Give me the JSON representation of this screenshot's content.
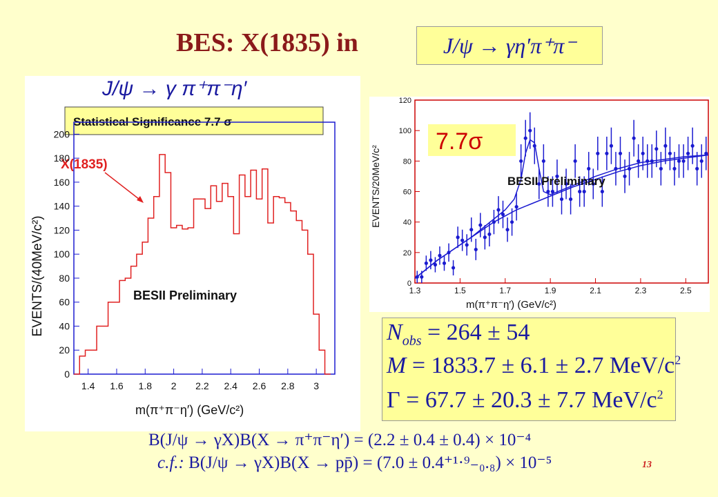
{
  "slide": {
    "title": "BES: X(1835) in",
    "title_equation": "J/ψ → γη′π⁺π⁻",
    "page_number": "13"
  },
  "left_plot": {
    "process_label": "J/ψ → γ π⁺π⁻η′",
    "significance_label": "Statistical Significance 7.7 σ",
    "peak_label": "X(1835)",
    "preliminary_label": "BESII Preliminary",
    "ylabel": "EVENTS/(40MeV/c²)",
    "xlabel": "m(π⁺π⁻η′)   (GeV/c²)"
  },
  "right_plot": {
    "significance_label": "7.7σ",
    "preliminary_label": "BESII Preliminary",
    "ylabel": "EVENTS/20MeV/c²",
    "xlabel": "m(π⁺π⁻η′) (GeV/c²)"
  },
  "results": {
    "n_obs": {
      "symbol": "N",
      "sub": "obs",
      "value": "= 264 ± 54"
    },
    "mass": {
      "symbol": "M",
      "value": "= 1833.7 ± 6.1 ± 2.7 MeV/c",
      "sup": "2"
    },
    "width": {
      "symbol": "Γ",
      "value": "= 67.7 ± 20.3 ± 7.7 MeV/c",
      "sup": "2"
    }
  },
  "branching": {
    "line1": "B(J/ψ → γX)B(X → π⁺π⁻η′) = (2.2 ± 0.4 ± 0.4) × 10⁻⁴",
    "line2_prefix": "c.f.:",
    "line2": "B(J/ψ → γX)B(X → pp̄) = (7.0 ± 0.4⁺¹·⁹₋₀.₈) × 10⁻⁵"
  },
  "colors": {
    "title": "#8b1a1a",
    "math": "#1a1aa0",
    "histogram": "#e02020",
    "data": "#1a1ad0",
    "frame_right": "#cc0000"
  },
  "chart_data": [
    {
      "type": "bar",
      "style": "step-histogram",
      "xlim": [
        1.3,
        3.13
      ],
      "ylim": [
        0,
        210
      ],
      "x_ticks": [
        1.4,
        1.6,
        1.8,
        2,
        2.2,
        2.4,
        2.6,
        2.8,
        3
      ],
      "x_tick_labels": [
        "1.4",
        "1.6",
        "1.8",
        "2",
        "2.2",
        "2.4",
        "2.6",
        "2.8",
        "3"
      ],
      "y_ticks": [
        0,
        20,
        40,
        60,
        80,
        100,
        120,
        140,
        160,
        180,
        200
      ],
      "y_tick_labels": [
        "0",
        "20",
        "40",
        "60",
        "80",
        "100",
        "120",
        "140",
        "160",
        "180",
        "200"
      ],
      "bin_edges": [
        1.3,
        1.34,
        1.38,
        1.42,
        1.46,
        1.5,
        1.54,
        1.58,
        1.62,
        1.66,
        1.7,
        1.74,
        1.78,
        1.82,
        1.86,
        1.9,
        1.94,
        1.98,
        2.02,
        2.06,
        2.1,
        2.14,
        2.18,
        2.22,
        2.26,
        2.3,
        2.34,
        2.38,
        2.42,
        2.46,
        2.5,
        2.54,
        2.58,
        2.62,
        2.66,
        2.7,
        2.74,
        2.78,
        2.82,
        2.86,
        2.9,
        2.94,
        2.98,
        3.02,
        3.06,
        3.1
      ],
      "values": [
        0,
        15,
        20,
        20,
        40,
        40,
        60,
        60,
        78,
        80,
        90,
        100,
        110,
        130,
        148,
        183,
        168,
        122,
        124,
        121,
        122,
        146,
        146,
        138,
        157,
        144,
        159,
        148,
        117,
        166,
        148,
        170,
        146,
        171,
        126,
        148,
        147,
        143,
        136,
        128,
        120,
        100,
        50,
        20,
        0
      ]
    },
    {
      "type": "scatter",
      "xlim": [
        1.3,
        2.6
      ],
      "ylim": [
        0,
        120
      ],
      "x_ticks": [
        1.3,
        1.5,
        1.7,
        1.9,
        2.1,
        2.3,
        2.5
      ],
      "x_tick_labels": [
        "1.3",
        "1.5",
        "1.7",
        "1.9",
        "2.1",
        "2.3",
        "2.5"
      ],
      "y_ticks": [
        0,
        20,
        40,
        60,
        80,
        100,
        120
      ],
      "y_tick_labels": [
        "0",
        "20",
        "40",
        "60",
        "80",
        "100",
        "120"
      ],
      "x": [
        1.31,
        1.33,
        1.35,
        1.37,
        1.39,
        1.41,
        1.43,
        1.45,
        1.47,
        1.49,
        1.51,
        1.53,
        1.55,
        1.57,
        1.59,
        1.61,
        1.63,
        1.65,
        1.67,
        1.69,
        1.71,
        1.73,
        1.75,
        1.77,
        1.79,
        1.81,
        1.83,
        1.85,
        1.87,
        1.89,
        1.91,
        1.93,
        1.95,
        1.97,
        1.99,
        2.01,
        2.03,
        2.05,
        2.07,
        2.09,
        2.11,
        2.13,
        2.15,
        2.17,
        2.19,
        2.21,
        2.23,
        2.25,
        2.27,
        2.29,
        2.31,
        2.33,
        2.35,
        2.37,
        2.39,
        2.41,
        2.43,
        2.45,
        2.47,
        2.49,
        2.51,
        2.53,
        2.55,
        2.57,
        2.59
      ],
      "values": [
        4,
        4,
        13,
        15,
        12,
        18,
        13,
        20,
        10,
        30,
        28,
        25,
        35,
        22,
        38,
        30,
        32,
        40,
        48,
        45,
        35,
        40,
        50,
        80,
        95,
        100,
        90,
        65,
        80,
        60,
        60,
        70,
        55,
        65,
        55,
        80,
        60,
        60,
        75,
        65,
        85,
        60,
        85,
        90,
        75,
        85,
        70,
        75,
        95,
        80,
        85,
        80,
        80,
        88,
        75,
        90,
        85,
        75,
        80,
        80,
        85,
        90,
        75,
        80,
        85
      ],
      "errors": [
        4,
        4,
        5,
        6,
        5,
        6,
        5,
        6,
        5,
        7,
        7,
        7,
        8,
        7,
        8,
        8,
        8,
        8,
        9,
        9,
        8,
        9,
        9,
        11,
        12,
        12,
        12,
        10,
        11,
        10,
        10,
        11,
        10,
        10,
        10,
        11,
        10,
        10,
        11,
        10,
        11,
        10,
        11,
        12,
        11,
        11,
        11,
        11,
        12,
        11,
        11,
        11,
        11,
        12,
        11,
        12,
        11,
        11,
        11,
        11,
        11,
        12,
        11,
        11,
        11
      ],
      "fit_total": {
        "x": [
          1.3,
          1.35,
          1.4,
          1.45,
          1.5,
          1.55,
          1.6,
          1.65,
          1.7,
          1.74,
          1.77,
          1.79,
          1.81,
          1.83,
          1.85,
          1.87,
          1.9,
          1.95,
          2.0,
          2.1,
          2.2,
          2.3,
          2.4,
          2.5,
          2.6
        ],
        "values": [
          3,
          9,
          15,
          20,
          25,
          30,
          36,
          42,
          48,
          55,
          68,
          85,
          94,
          92,
          75,
          60,
          58,
          61,
          64,
          70,
          75,
          79,
          81,
          83,
          84
        ]
      },
      "fit_background": {
        "x": [
          1.3,
          1.35,
          1.4,
          1.45,
          1.5,
          1.55,
          1.6,
          1.65,
          1.7,
          1.75,
          1.8,
          1.85,
          1.9,
          1.95,
          2.0,
          2.1,
          2.2,
          2.3,
          2.4,
          2.5,
          2.6
        ],
        "values": [
          3,
          9,
          15,
          20,
          25,
          30,
          35,
          40,
          44,
          48,
          51,
          54,
          57,
          60,
          63,
          68,
          73,
          77,
          80,
          82,
          84
        ]
      }
    }
  ]
}
